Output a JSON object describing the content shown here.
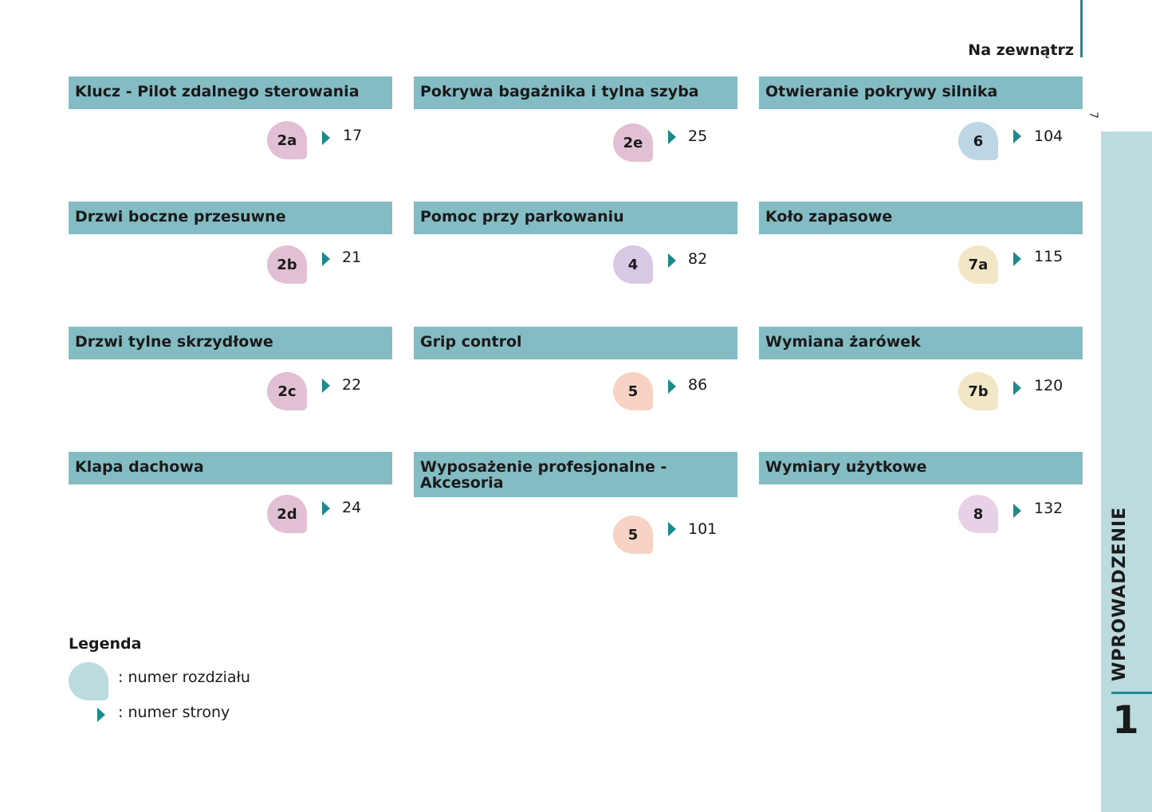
{
  "section_title": "Na zewnątrz",
  "page_number": "7",
  "side_tab": {
    "label": "WPROWADZENIE",
    "chapter": "1"
  },
  "colors": {
    "header_bg": "#84bcc4",
    "accent": "#1d8a8e",
    "tab_bg": "#bbdbdf",
    "chapter_2": "#e2c0d3",
    "chapter_4": "#d7c8e6",
    "chapter_5": "#f8d3c3",
    "chapter_6": "#bcd6e6",
    "chapter_7": "#f1e7c6",
    "chapter_8": "#e8d0e6"
  },
  "cards": [
    {
      "title": "Klucz - Pilot zdalnego sterowania",
      "chapter": "2a",
      "page": "17",
      "color": "#e2c0d3"
    },
    {
      "title": "Pokrywa bagażnika i tylna szyba",
      "chapter": "2e",
      "page": "25",
      "color": "#e2c0d3"
    },
    {
      "title": "Otwieranie pokrywy silnika",
      "chapter": "6",
      "page": "104",
      "color": "#bcd6e6"
    },
    {
      "title": "Drzwi boczne przesuwne",
      "chapter": "2b",
      "page": "21",
      "color": "#e2c0d3"
    },
    {
      "title": "Pomoc przy parkowaniu",
      "chapter": "4",
      "page": "82",
      "color": "#d7c8e6"
    },
    {
      "title": "Koło zapasowe",
      "chapter": "7a",
      "page": "115",
      "color": "#f1e7c6"
    },
    {
      "title": "Drzwi tylne skrzydłowe",
      "chapter": "2c",
      "page": "22",
      "color": "#e2c0d3"
    },
    {
      "title": "Grip control",
      "chapter": "5",
      "page": "86",
      "color": "#f8d3c3"
    },
    {
      "title": "Wymiana żarówek",
      "chapter": "7b",
      "page": "120",
      "color": "#f1e7c6"
    },
    {
      "title": "Klapa dachowa",
      "chapter": "2d",
      "page": "24",
      "color": "#e2c0d3"
    },
    {
      "title": "Wyposażenie profesjonalne - Akcesoria",
      "chapter": "5",
      "page": "101",
      "color": "#f8d3c3"
    },
    {
      "title": "Wymiary użytkowe",
      "chapter": "8",
      "page": "132",
      "color": "#e8d0e6"
    }
  ],
  "legend": {
    "title": "Legenda",
    "chapter_label": ": numer rozdziału",
    "page_label": ": numer strony"
  }
}
